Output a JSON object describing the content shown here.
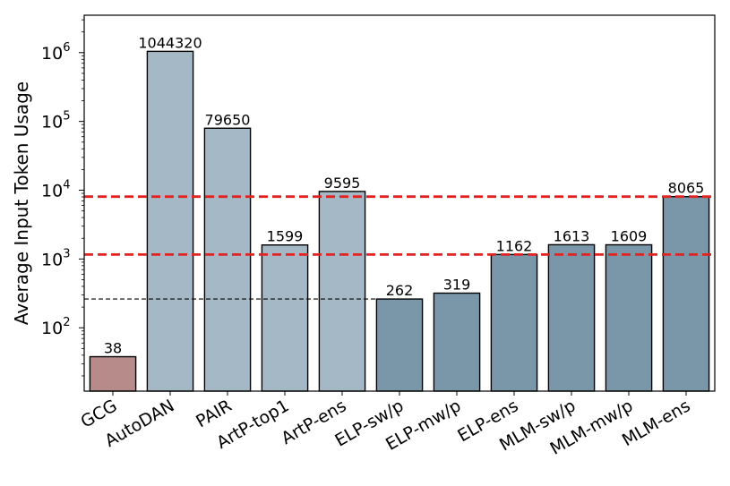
{
  "chart_data": {
    "type": "bar",
    "ylabel": "Average Input Token Usage",
    "yscale": "log",
    "ylim": [
      12,
      3500000
    ],
    "y_ticks": [
      {
        "value": 100,
        "base": "10",
        "exp": "2"
      },
      {
        "value": 1000,
        "base": "10",
        "exp": "3"
      },
      {
        "value": 10000,
        "base": "10",
        "exp": "4"
      },
      {
        "value": 100000,
        "base": "10",
        "exp": "5"
      },
      {
        "value": 1000000,
        "base": "10",
        "exp": "6"
      }
    ],
    "categories": [
      "GCG",
      "AutoDAN",
      "PAIR",
      "ArtP-top1",
      "ArtP-ens",
      "ELP-sw/p",
      "ELP-mw/p",
      "ELP-ens",
      "MLM-sw/p",
      "MLM-mw/p",
      "MLM-ens"
    ],
    "values": [
      38,
      1044320,
      79650,
      1599,
      9595,
      262,
      319,
      1162,
      1613,
      1609,
      8065
    ],
    "value_labels": [
      "38",
      "1044320",
      "79650",
      "1599",
      "9595",
      "262",
      "319",
      "1162",
      "1613",
      "1609",
      "8065"
    ],
    "bar_colors": [
      "#b88b8b",
      "#a5b8c6",
      "#a5b8c6",
      "#a5b8c6",
      "#a5b8c6",
      "#7a96a9",
      "#7a96a9",
      "#7a96a9",
      "#7a96a9",
      "#7a96a9",
      "#7a96a9"
    ],
    "reference_lines": [
      {
        "value": 8065,
        "color": "#e32222",
        "style": "dashed",
        "weight": "thick",
        "extent": "full"
      },
      {
        "value": 1162,
        "color": "#e32222",
        "style": "dashed",
        "weight": "thick",
        "extent": "full"
      },
      {
        "value": 262,
        "color": "#000000",
        "style": "dashed",
        "weight": "thin",
        "extent": "partial"
      }
    ],
    "grid": false,
    "legend": "none"
  }
}
